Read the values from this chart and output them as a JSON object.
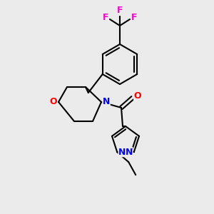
{
  "bg_color": "#ebebeb",
  "bond_color": "#000000",
  "bond_width": 1.5,
  "atom_colors": {
    "N": "#0000ff",
    "O": "#ff0000",
    "F": "#ff00cc"
  },
  "font_size_atom": 9
}
